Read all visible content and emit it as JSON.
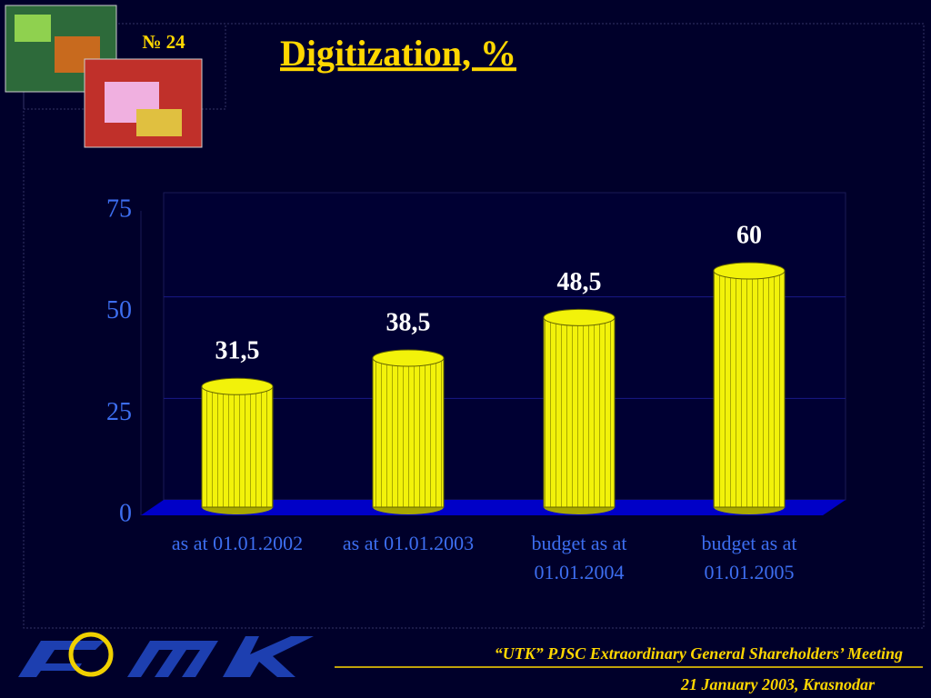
{
  "slide_number": "№ 24",
  "chart_data": {
    "type": "bar",
    "title": "Digitization, %",
    "categories": [
      "as at 01.01.2002",
      "as at 01.01.2003",
      "budget as at 01.01.2004",
      "budget as at 01.01.2005"
    ],
    "values": [
      31.5,
      38.5,
      48.5,
      60
    ],
    "value_labels": [
      "31,5",
      "38,5",
      "48,5",
      "60"
    ],
    "color": "#f2f20a",
    "ylim": [
      0,
      75
    ],
    "yticks": [
      0,
      25,
      50,
      75
    ],
    "grid": true
  },
  "footer": {
    "meeting": "“UTK” PJSC Extraordinary General Shareholders’ Meeting",
    "date_place": "21 January 2003, Krasnodar"
  }
}
